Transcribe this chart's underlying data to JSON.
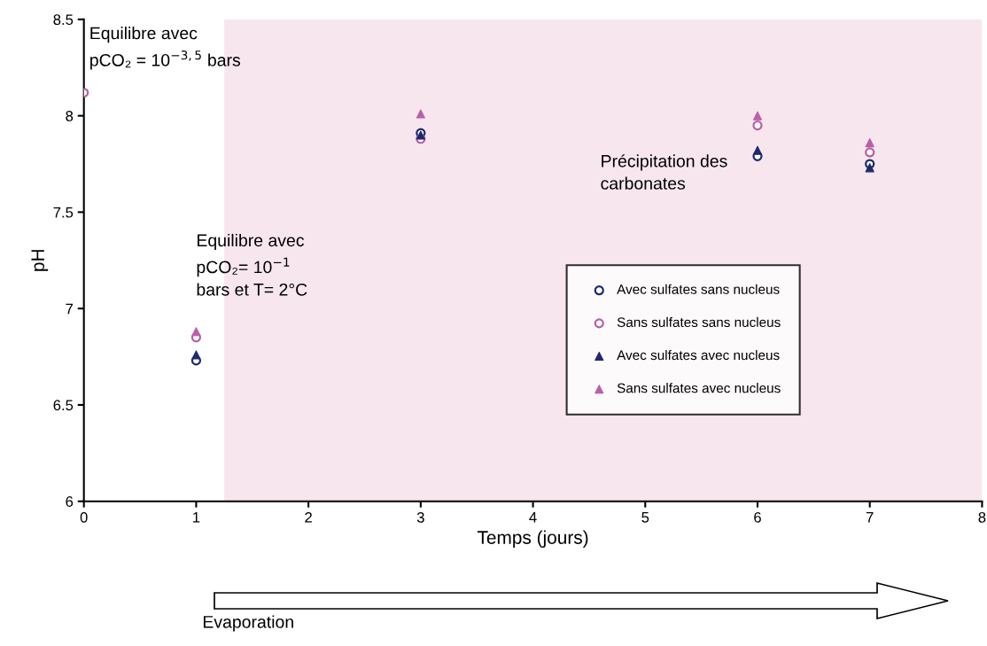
{
  "chart_data": {
    "type": "scatter",
    "xlabel": "Temps (jours)",
    "ylabel": "pH",
    "x": [
      0,
      1,
      3,
      6,
      7
    ],
    "series": [
      {
        "name": "Avec sulfates sans nucleus",
        "color": "#1f2a6e",
        "marker": "circle",
        "values": [
          null,
          6.73,
          7.91,
          7.79,
          7.75
        ]
      },
      {
        "name": "Sans sulfates sans nucleus",
        "color": "#b860a8",
        "marker": "circle",
        "values": [
          8.12,
          6.85,
          7.88,
          7.95,
          7.81
        ]
      },
      {
        "name": "Avec sulfates avec nucleus",
        "color": "#1f2a6e",
        "marker": "triangle",
        "values": [
          null,
          6.76,
          7.9,
          7.82,
          7.73
        ]
      },
      {
        "name": "Sans sulfates avec nucleus",
        "color": "#b860a8",
        "marker": "triangle",
        "values": [
          null,
          6.88,
          8.01,
          8.0,
          7.86
        ]
      }
    ],
    "xlim": [
      0,
      8
    ],
    "xticks": [
      0,
      1,
      2,
      3,
      4,
      5,
      6,
      7,
      8
    ],
    "ylim": [
      6,
      8.5
    ],
    "yticks": [
      6,
      6.5,
      7,
      7.5,
      8,
      8.5
    ],
    "bands": [
      {
        "axis": "x",
        "from": 1.25,
        "to": 8,
        "color": "#f8e6ee"
      }
    ],
    "grid": false,
    "legend": "right",
    "annotations": [
      "Equilibre avec\npCO₂ = 10$^{−3,5}$ bars",
      "Equilibre avec\npCO₂= 10$^{−1}$\nbars et T= 2°C",
      "Précipitation des\ncarbonates",
      "Evaporation"
    ]
  }
}
